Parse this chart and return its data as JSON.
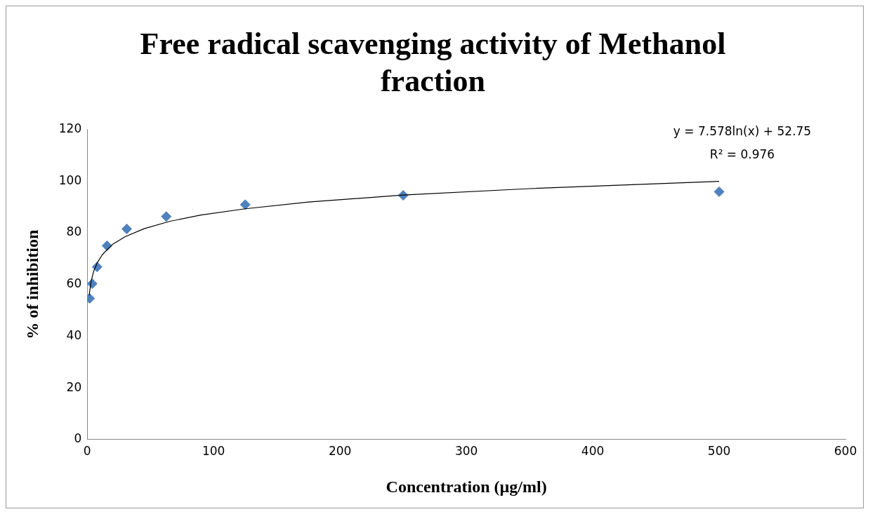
{
  "chart_data": {
    "type": "scatter",
    "title": "Free radical scavenging activity of Methanol fraction",
    "xlabel": "Concentration (µg/ml)",
    "ylabel": "% of inhibition",
    "series": [
      {
        "type": "scatter",
        "color": "#4f81bd",
        "marker": "diamond",
        "x": [
          1.95,
          3.9,
          7.8,
          15.6,
          31.25,
          62.5,
          125,
          250,
          500
        ],
        "values": [
          54.6,
          60.3,
          66.8,
          75,
          81.5,
          86.3,
          90.9,
          94.5,
          95.9
        ]
      },
      {
        "type": "line",
        "color": "#000000",
        "marker": "none",
        "x": [
          1.5,
          3,
          5,
          8,
          12,
          20,
          30,
          45,
          65,
          90,
          125,
          175,
          250,
          350,
          500
        ],
        "values": [
          55.8,
          61.1,
          65,
          68.5,
          71.6,
          75.5,
          78.5,
          81.6,
          84.4,
          86.9,
          89.3,
          91.9,
          94.6,
          97.1,
          99.9
        ]
      }
    ],
    "annotations": [
      "y = 7.578ln(x) + 52.75",
      "R² = 0.976"
    ],
    "xlim": [
      0,
      600
    ],
    "xticks": [
      0,
      100,
      200,
      300,
      400,
      500,
      600
    ],
    "ylim": [
      0,
      120
    ],
    "yticks": [
      0,
      20,
      40,
      60,
      80,
      100,
      120
    ],
    "grid": false,
    "legend": false
  }
}
